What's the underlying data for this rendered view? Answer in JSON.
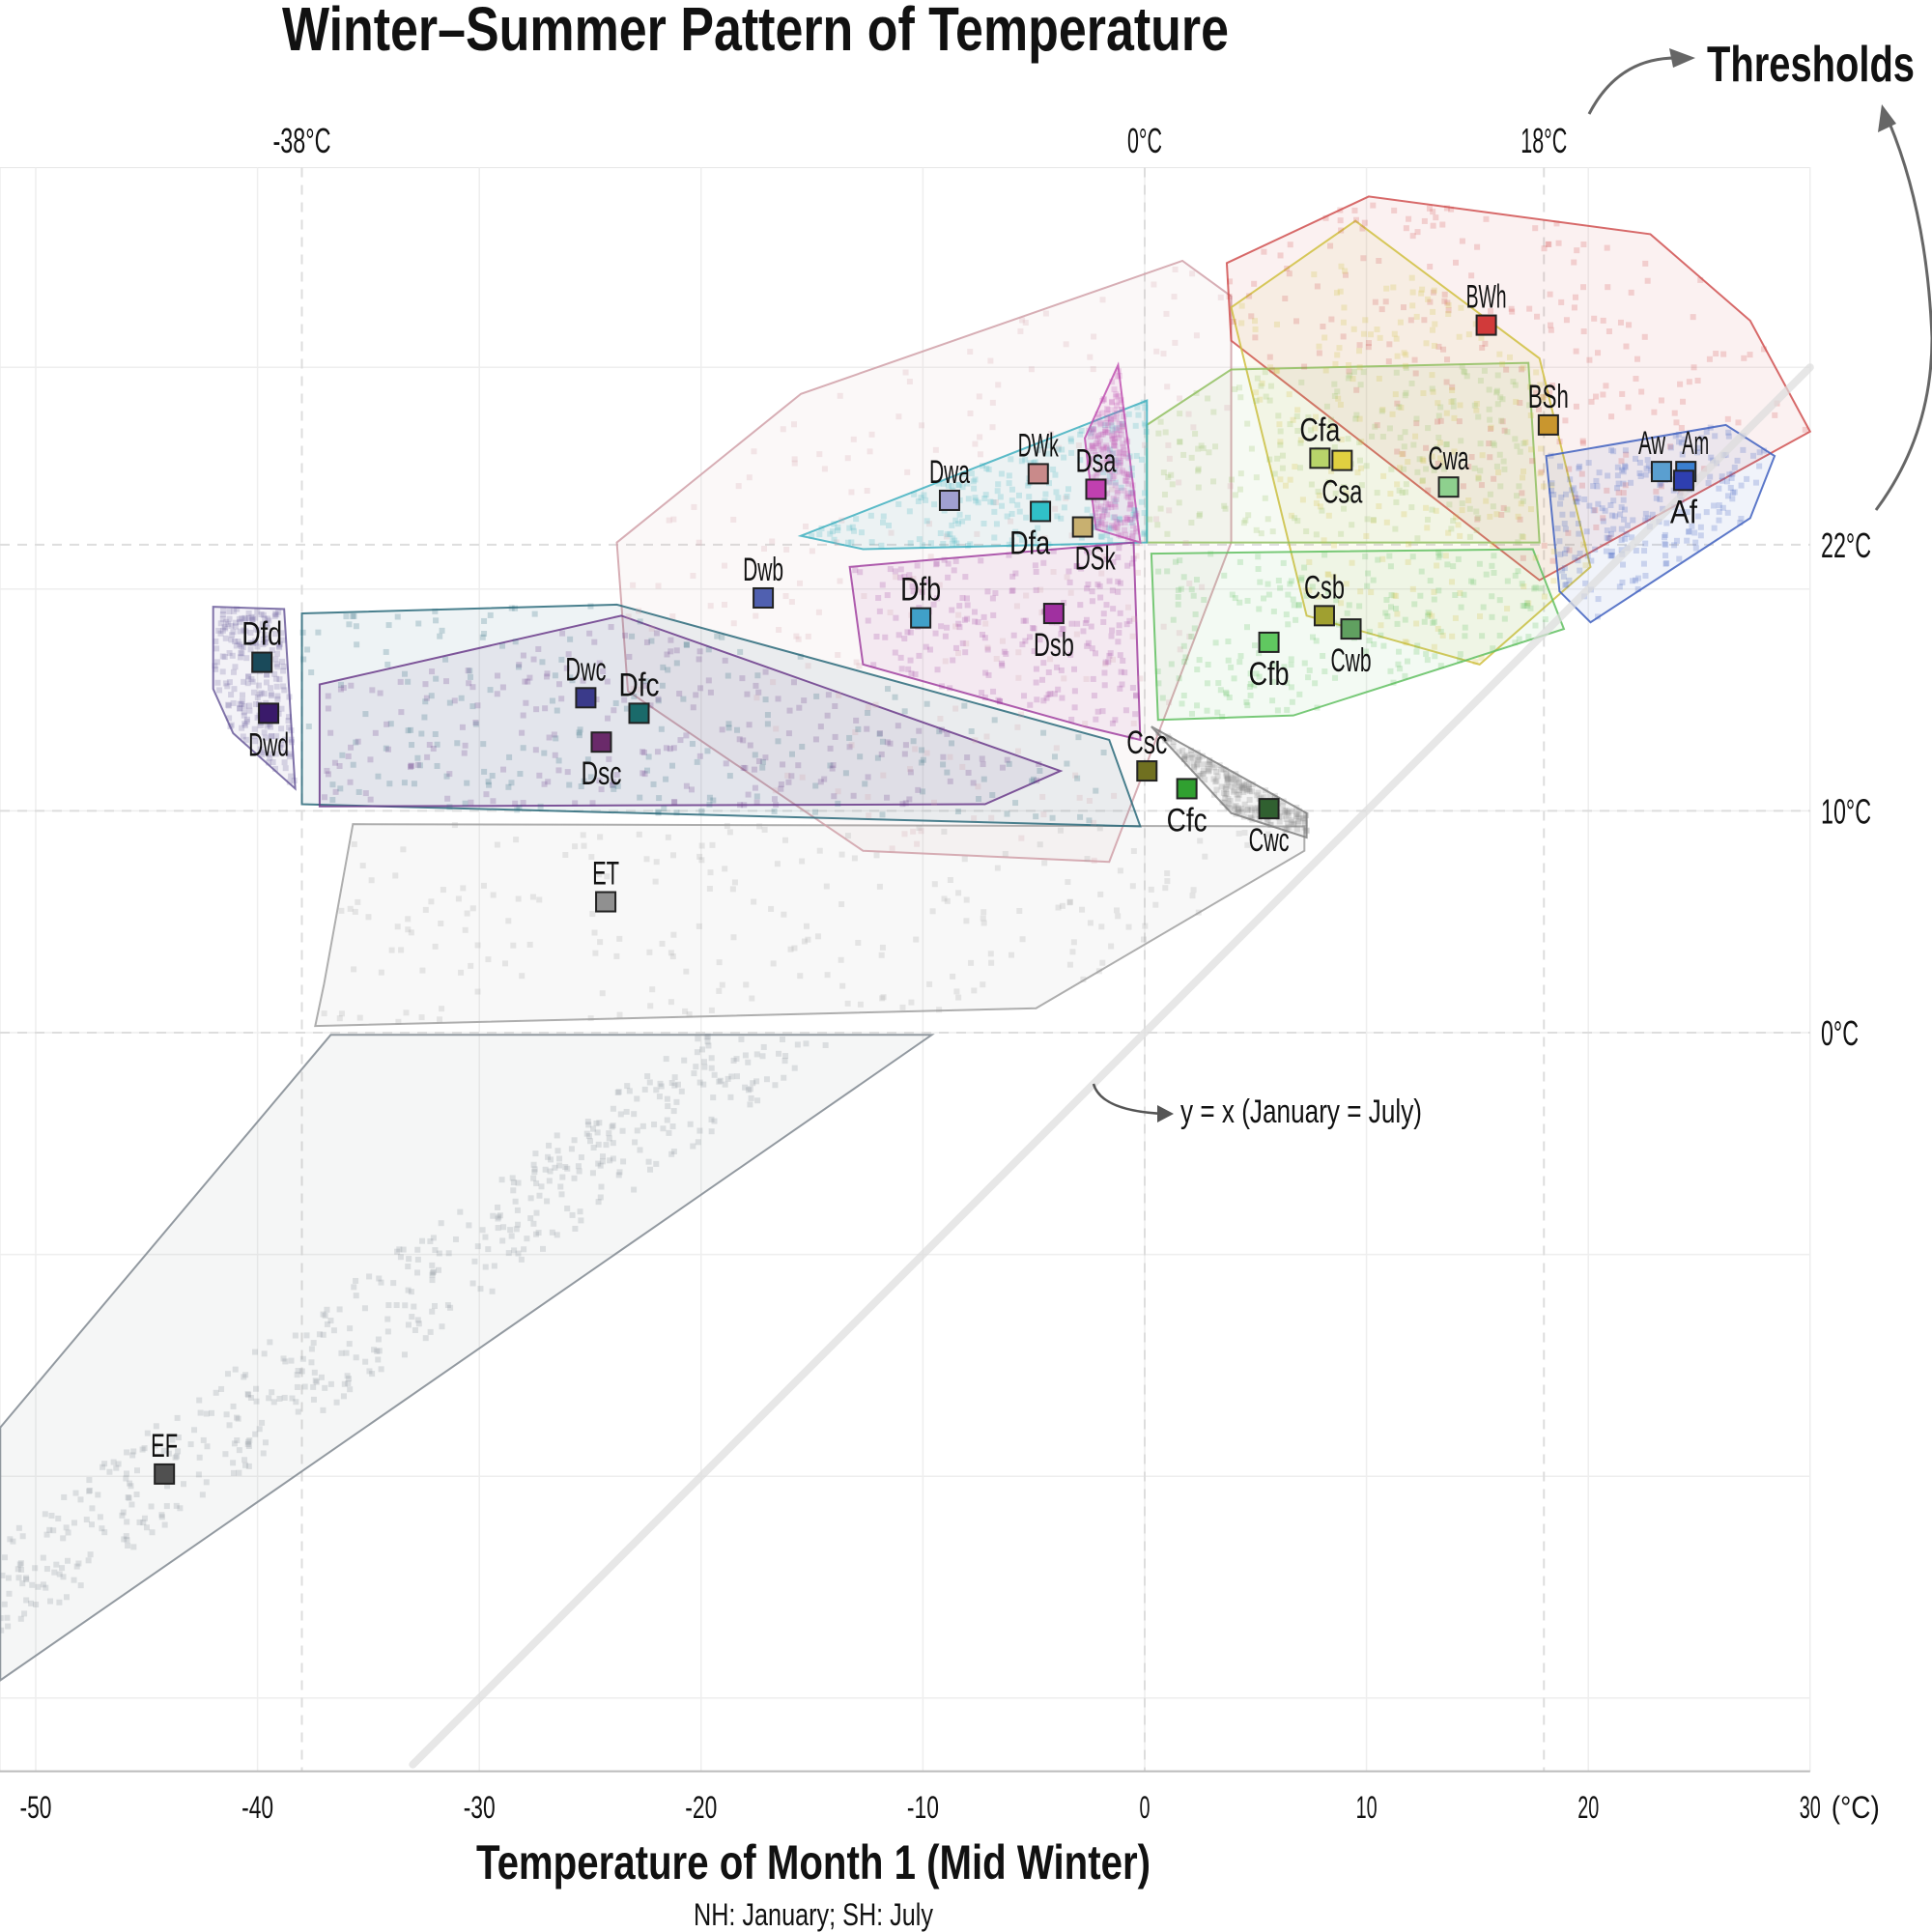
{
  "chart_data": {
    "type": "scatter",
    "title": "Winter–Summer Pattern of Temperature",
    "xlabel": "Temperature of Month 1 (Mid Winter)",
    "xlabel_sub": "NH: January; SH: July",
    "x_unit_label": "(°C)",
    "xlim": [
      -51.6,
      30
    ],
    "ylim": [
      -33.3,
      39
    ],
    "x_ticks": [
      -50,
      -40,
      -30,
      -20,
      -10,
      0,
      10,
      20,
      30
    ],
    "grid": true,
    "thresholds_label": "Thresholds",
    "x_thresholds": [
      {
        "value": -38,
        "label": "-38°C"
      },
      {
        "value": 0,
        "label": "0°C"
      },
      {
        "value": 18,
        "label": "18°C"
      }
    ],
    "y_thresholds": [
      {
        "value": 22,
        "label": "22°C"
      },
      {
        "value": 10,
        "label": "10°C"
      },
      {
        "value": 0,
        "label": "0°C"
      }
    ],
    "reference_line": {
      "label": "y = x (January = July)",
      "slope": 1,
      "intercept": 0
    },
    "classes": [
      {
        "name": "BWh",
        "x": 15.4,
        "y": 31.9,
        "color": "#d13a3a"
      },
      {
        "name": "BSh",
        "x": 18.2,
        "y": 27.4,
        "color": "#c9962e"
      },
      {
        "name": "Aw",
        "x": 23.3,
        "y": 25.3,
        "color": "#5a9fd0"
      },
      {
        "name": "Am",
        "x": 24.4,
        "y": 25.3,
        "color": "#3a7fd0"
      },
      {
        "name": "Af",
        "x": 24.3,
        "y": 24.9,
        "color": "#2e3fb0"
      },
      {
        "name": "Cfa",
        "x": 7.9,
        "y": 25.9,
        "color": "#b8d46a"
      },
      {
        "name": "Csa",
        "x": 8.9,
        "y": 25.8,
        "color": "#e0d040"
      },
      {
        "name": "Cwa",
        "x": 13.7,
        "y": 24.6,
        "color": "#8ed08e"
      },
      {
        "name": "DWk",
        "x": -4.8,
        "y": 25.2,
        "color": "#c98a8a"
      },
      {
        "name": "Dsa",
        "x": -2.2,
        "y": 24.5,
        "color": "#c040b0"
      },
      {
        "name": "Dwa",
        "x": -8.8,
        "y": 24.0,
        "color": "#a0a0d0"
      },
      {
        "name": "Dfa",
        "x": -4.7,
        "y": 23.5,
        "color": "#30c0c8"
      },
      {
        "name": "DSk",
        "x": -2.8,
        "y": 22.8,
        "color": "#c8b070"
      },
      {
        "name": "Dwb",
        "x": -17.2,
        "y": 19.6,
        "color": "#5060b0"
      },
      {
        "name": "Dfb",
        "x": -10.1,
        "y": 18.7,
        "color": "#40a0c8"
      },
      {
        "name": "Dsb",
        "x": -4.1,
        "y": 18.9,
        "color": "#a030a0"
      },
      {
        "name": "Csb",
        "x": 8.1,
        "y": 18.8,
        "color": "#a0a030"
      },
      {
        "name": "Cwb",
        "x": 9.3,
        "y": 18.2,
        "color": "#60a060"
      },
      {
        "name": "Cfb",
        "x": 5.6,
        "y": 17.6,
        "color": "#60c860"
      },
      {
        "name": "Dfd",
        "x": -39.8,
        "y": 16.7,
        "color": "#1a4a5a"
      },
      {
        "name": "Dwd",
        "x": -39.5,
        "y": 14.4,
        "color": "#3a1a6a"
      },
      {
        "name": "Dwc",
        "x": -25.2,
        "y": 15.1,
        "color": "#3a3a8a"
      },
      {
        "name": "Dfc",
        "x": -22.8,
        "y": 14.4,
        "color": "#1a6a6a"
      },
      {
        "name": "Dsc",
        "x": -24.5,
        "y": 13.1,
        "color": "#6a2a6a"
      },
      {
        "name": "Csc",
        "x": 0.1,
        "y": 11.8,
        "color": "#707020"
      },
      {
        "name": "Cfc",
        "x": 1.9,
        "y": 11.0,
        "color": "#30a030"
      },
      {
        "name": "Cwc",
        "x": 5.6,
        "y": 10.1,
        "color": "#306030"
      },
      {
        "name": "ET",
        "x": -24.3,
        "y": 5.9,
        "color": "#909090"
      },
      {
        "name": "EF",
        "x": -44.2,
        "y": -19.9,
        "color": "#505050"
      }
    ],
    "hulls": [
      {
        "class": "EF",
        "color": "#808890",
        "points": [
          [
            -51.6,
            -17.8
          ],
          [
            -36.7,
            -0.1
          ],
          [
            -9.6,
            -0.1
          ],
          [
            -51.6,
            -29.2
          ]
        ]
      },
      {
        "class": "ET",
        "color": "#a0a0a0",
        "points": [
          [
            -35.7,
            9.4
          ],
          [
            7.2,
            9.3
          ],
          [
            7.2,
            8.2
          ],
          [
            -4.9,
            1.1
          ],
          [
            -37.4,
            0.3
          ],
          [
            -37,
            2.2
          ]
        ]
      },
      {
        "class": "Dwa",
        "color": "#d0a0a8",
        "points": [
          [
            -23.8,
            22.1
          ],
          [
            -15.5,
            28.8
          ],
          [
            1.7,
            34.8
          ],
          [
            3.9,
            33.2
          ],
          [
            3.9,
            22.1
          ],
          [
            -1.6,
            7.7
          ],
          [
            -12.7,
            8.2
          ],
          [
            -23.3,
            15.4
          ]
        ]
      },
      {
        "class": "BWh",
        "color": "#d05050",
        "points": [
          [
            3.7,
            34.7
          ],
          [
            10.1,
            37.7
          ],
          [
            22.8,
            36
          ],
          [
            27.3,
            32.1
          ],
          [
            30,
            27.1
          ],
          [
            17.8,
            20.4
          ],
          [
            3.9,
            31.2
          ]
        ]
      },
      {
        "class": "Csa",
        "color": "#d0c040",
        "points": [
          [
            3.9,
            32.7
          ],
          [
            9.5,
            36.6
          ],
          [
            17.8,
            30.4
          ],
          [
            20.1,
            21
          ],
          [
            15.1,
            16.6
          ],
          [
            7.3,
            18.8
          ]
        ]
      },
      {
        "class": "Cfa",
        "color": "#90c060",
        "points": [
          [
            0.1,
            27.4
          ],
          [
            3.9,
            29.9
          ],
          [
            17.3,
            30.2
          ],
          [
            17.8,
            22.1
          ],
          [
            0.1,
            22.1
          ]
        ]
      },
      {
        "class": "Cfb",
        "color": "#60c060",
        "points": [
          [
            0.3,
            21.6
          ],
          [
            17.5,
            21.8
          ],
          [
            18.9,
            18.2
          ],
          [
            6.7,
            14.3
          ],
          [
            0.6,
            14.1
          ]
        ]
      },
      {
        "class": "Aw",
        "color": "#4060c0",
        "points": [
          [
            18.1,
            26
          ],
          [
            26.2,
            27.4
          ],
          [
            28.4,
            26
          ],
          [
            27.3,
            23.2
          ],
          [
            20.1,
            18.5
          ],
          [
            18.7,
            19.9
          ]
        ]
      },
      {
        "class": "Dfa",
        "color": "#40b0c0",
        "points": [
          [
            -15.5,
            22.4
          ],
          [
            0.1,
            28.5
          ],
          [
            0.1,
            22.1
          ],
          [
            -12.7,
            21.8
          ]
        ]
      },
      {
        "class": "Dsa",
        "color": "#c050b0",
        "points": [
          [
            -2.7,
            26.8
          ],
          [
            -1.2,
            30.1
          ],
          [
            -0.2,
            22.1
          ],
          [
            -2.2,
            22.7
          ]
        ]
      },
      {
        "class": "Dfb",
        "color": "#a040a0",
        "points": [
          [
            -13.3,
            21
          ],
          [
            -0.5,
            22.1
          ],
          [
            -0.2,
            13.2
          ],
          [
            -2.7,
            13.8
          ],
          [
            -12.7,
            16.6
          ]
        ]
      },
      {
        "class": "Dfc",
        "color": "#2a6a7a",
        "points": [
          [
            -38,
            18.9
          ],
          [
            -23.8,
            19.3
          ],
          [
            -1.6,
            13.2
          ],
          [
            -0.2,
            9.3
          ],
          [
            -38,
            10.3
          ]
        ]
      },
      {
        "class": "Dwc",
        "color": "#6a3a8a",
        "points": [
          [
            -37.2,
            15.7
          ],
          [
            -23.6,
            18.8
          ],
          [
            -3.8,
            11.8
          ],
          [
            -7.2,
            10.3
          ],
          [
            -37.2,
            10.2
          ]
        ]
      },
      {
        "class": "Dfd",
        "color": "#6a5a9a",
        "points": [
          [
            -42,
            19.2
          ],
          [
            -38.8,
            19.1
          ],
          [
            -38.3,
            11
          ],
          [
            -41.1,
            13.5
          ],
          [
            -42,
            15.5
          ]
        ]
      },
      {
        "class": "Cwc",
        "color": "#808080",
        "points": [
          [
            0.3,
            13.8
          ],
          [
            7.3,
            9.9
          ],
          [
            7.3,
            8.8
          ],
          [
            3.9,
            9.9
          ]
        ]
      }
    ]
  }
}
